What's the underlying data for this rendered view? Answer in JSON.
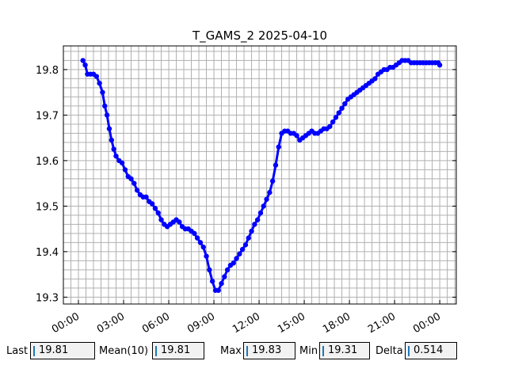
{
  "chart_data": {
    "type": "line",
    "title": "T_GAMS_2 2025-04-10",
    "xlabel": "",
    "ylabel": "",
    "x_tick_labels": [
      "00:00",
      "03:00",
      "06:00",
      "09:00",
      "12:00",
      "15:00",
      "18:00",
      "21:00",
      "00:00"
    ],
    "y_tick_labels": [
      "19.3",
      "19.4",
      "19.5",
      "19.6",
      "19.7",
      "19.8"
    ],
    "xlim_hours": [
      -1.0,
      25.1
    ],
    "ylim": [
      19.285,
      19.852
    ],
    "grid": true,
    "series": [
      {
        "color": "#0000ff",
        "x_hours": [
          0.3,
          0.45,
          0.6,
          0.8,
          1.0,
          1.2,
          1.4,
          1.6,
          1.75,
          1.9,
          2.05,
          2.2,
          2.35,
          2.5,
          2.7,
          2.9,
          3.1,
          3.3,
          3.5,
          3.7,
          3.9,
          4.1,
          4.3,
          4.5,
          4.7,
          4.9,
          5.1,
          5.3,
          5.5,
          5.7,
          5.9,
          6.1,
          6.3,
          6.5,
          6.7,
          6.9,
          7.1,
          7.3,
          7.5,
          7.7,
          7.9,
          8.1,
          8.3,
          8.5,
          8.7,
          8.9,
          9.1,
          9.3,
          9.5,
          9.7,
          9.9,
          10.1,
          10.3,
          10.5,
          10.7,
          10.9,
          11.1,
          11.3,
          11.5,
          11.7,
          11.9,
          12.1,
          12.3,
          12.5,
          12.7,
          12.9,
          13.1,
          13.3,
          13.5,
          13.7,
          13.9,
          14.1,
          14.3,
          14.5,
          14.7,
          14.9,
          15.1,
          15.3,
          15.5,
          15.7,
          15.9,
          16.1,
          16.3,
          16.5,
          16.7,
          16.9,
          17.1,
          17.3,
          17.5,
          17.7,
          17.9,
          18.1,
          18.3,
          18.5,
          18.7,
          18.9,
          19.1,
          19.3,
          19.5,
          19.7,
          19.9,
          20.1,
          20.3,
          20.5,
          20.7,
          20.9,
          21.1,
          21.3,
          21.5,
          21.7,
          21.9,
          22.1,
          22.3,
          22.5,
          22.7,
          22.9,
          23.1,
          23.3,
          23.5,
          23.7,
          23.9,
          24.0
        ],
        "values": [
          19.82,
          19.81,
          19.79,
          19.79,
          19.79,
          19.785,
          19.77,
          19.75,
          19.72,
          19.7,
          19.67,
          19.645,
          19.625,
          19.61,
          19.6,
          19.595,
          19.58,
          19.565,
          19.56,
          19.55,
          19.535,
          19.525,
          19.52,
          19.52,
          19.51,
          19.505,
          19.495,
          19.485,
          19.47,
          19.46,
          19.455,
          19.46,
          19.465,
          19.47,
          19.465,
          19.455,
          19.45,
          19.45,
          19.445,
          19.44,
          19.43,
          19.42,
          19.41,
          19.39,
          19.36,
          19.335,
          19.315,
          19.315,
          19.33,
          19.345,
          19.36,
          19.37,
          19.375,
          19.385,
          19.395,
          19.405,
          19.415,
          19.43,
          19.445,
          19.46,
          19.47,
          19.485,
          19.5,
          19.515,
          19.53,
          19.555,
          19.59,
          19.63,
          19.66,
          19.665,
          19.665,
          19.66,
          19.66,
          19.655,
          19.645,
          19.65,
          19.655,
          19.66,
          19.665,
          19.66,
          19.66,
          19.665,
          19.67,
          19.67,
          19.675,
          19.685,
          19.695,
          19.705,
          19.715,
          19.725,
          19.735,
          19.74,
          19.745,
          19.75,
          19.755,
          19.76,
          19.765,
          19.77,
          19.775,
          19.78,
          19.79,
          19.795,
          19.8,
          19.8,
          19.805,
          19.805,
          19.81,
          19.815,
          19.82,
          19.82,
          19.82,
          19.815,
          19.815,
          19.815,
          19.815,
          19.815,
          19.815,
          19.815,
          19.815,
          19.815,
          19.815,
          19.81
        ]
      }
    ]
  },
  "stats": [
    {
      "label": "Last",
      "value": "19.81"
    },
    {
      "label": "Mean(10)",
      "value": "19.81"
    },
    {
      "label": "Max",
      "value": "19.83"
    },
    {
      "label": "Min",
      "value": "19.31"
    },
    {
      "label": "Delta",
      "value": "0.514"
    }
  ]
}
